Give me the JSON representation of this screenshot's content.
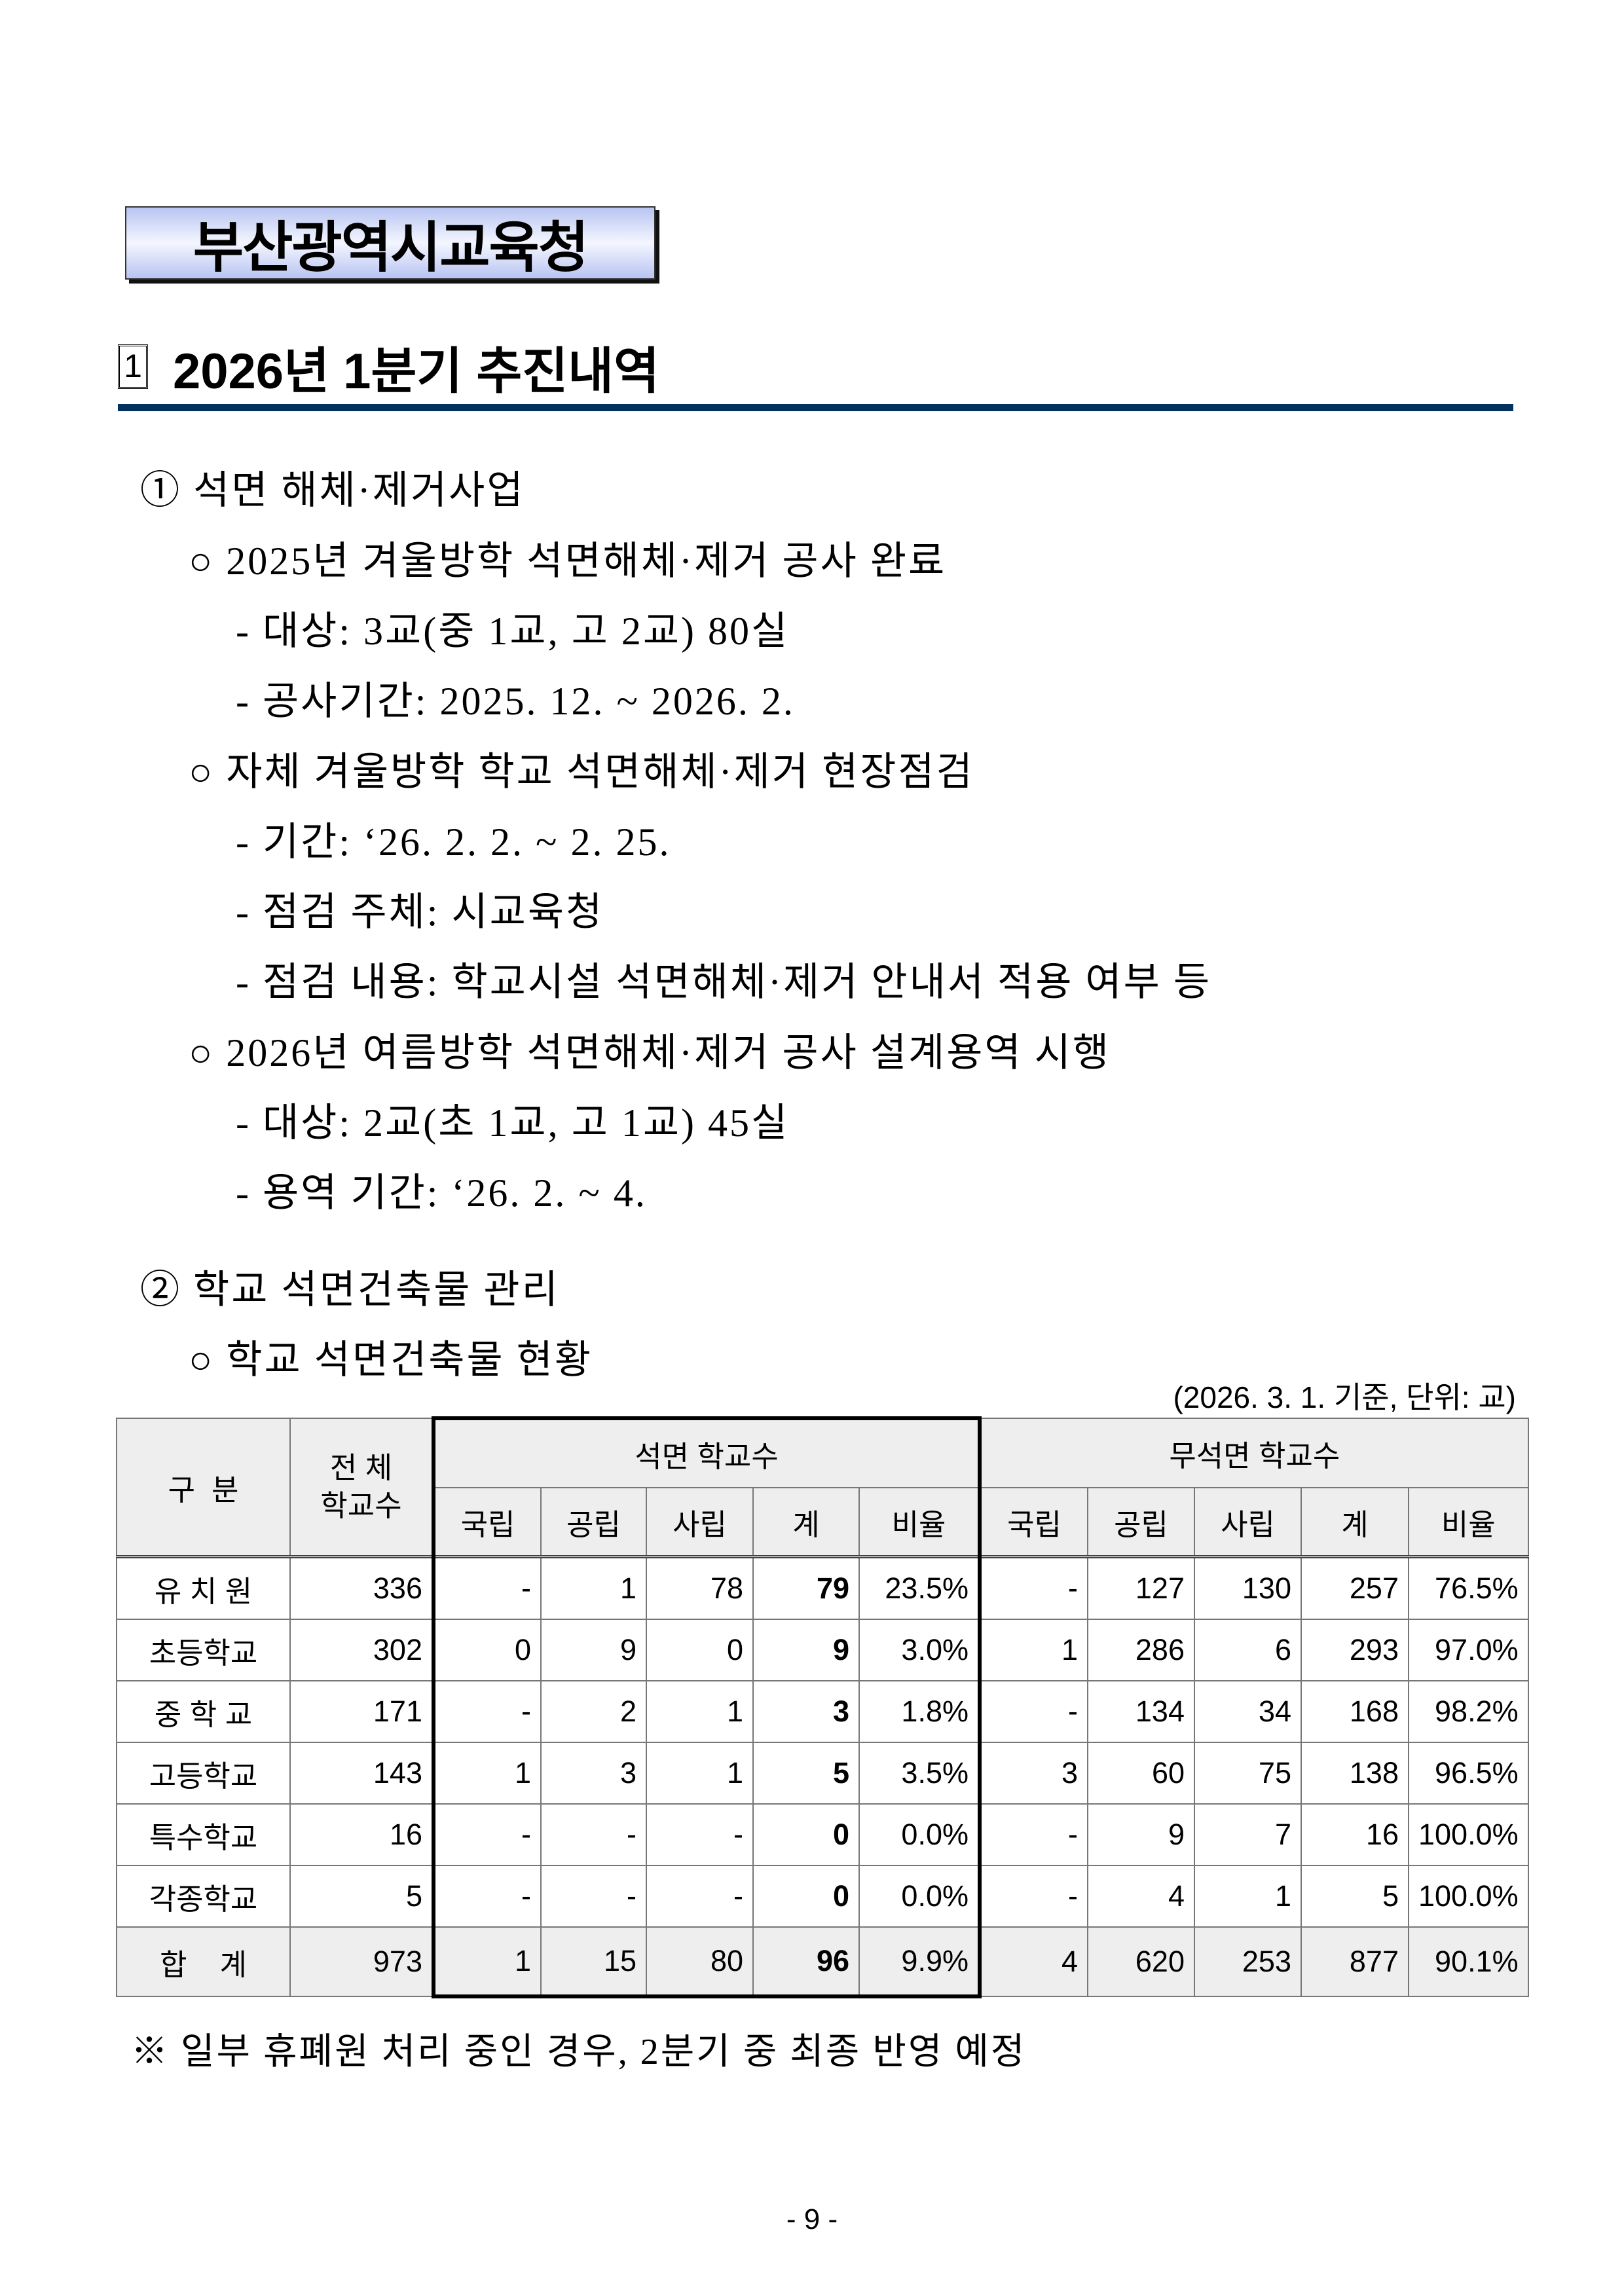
{
  "org_title": "부산광역시교육청",
  "heading": {
    "number": "1",
    "text": "2026년 1분기 추진내역"
  },
  "lines": [
    "① 석면 해체·제거사업",
    "○ 2025년 겨울방학 석면해체·제거 공사 완료",
    "- 대상: 3교(중 1교, 고 2교) 80실",
    "- 공사기간: 2025. 12. ~ 2026. 2.",
    "○ 자체 겨울방학 학교 석면해체·제거 현장점검",
    "- 기간: ‘26. 2. 2. ~ 2. 25.",
    "- 점검 주체: 시교육청",
    "- 점검 내용: 학교시설 석면해체·제거 안내서 적용 여부 등",
    "○ 2026년 여름방학 석면해체·제거 공사 설계용역 시행",
    "- 대상: 2교(초 1교, 고 1교) 45실",
    "- 용역 기간: ‘26. 2. ~ 4.",
    "② 학교 석면건축물 관리",
    "○ 학교 석면건축물 현황"
  ],
  "table": {
    "note": "(2026. 3. 1. 기준, 단위: 교)",
    "h_category": "구  분",
    "h_total": "전 체\n학교수",
    "h_asbestos": "석면 학교수",
    "h_non_asbestos": "무석면 학교수",
    "sub": [
      "국립",
      "공립",
      "사립",
      "계",
      "비율",
      "국립",
      "공립",
      "사립",
      "계",
      "비율"
    ],
    "rows": [
      [
        "유 치 원",
        "336",
        "-",
        "1",
        "78",
        "79",
        "23.5%",
        "-",
        "127",
        "130",
        "257",
        "76.5%"
      ],
      [
        "초등학교",
        "302",
        "0",
        "9",
        "0",
        "9",
        "3.0%",
        "1",
        "286",
        "6",
        "293",
        "97.0%"
      ],
      [
        "중 학 교",
        "171",
        "-",
        "2",
        "1",
        "3",
        "1.8%",
        "-",
        "134",
        "34",
        "168",
        "98.2%"
      ],
      [
        "고등학교",
        "143",
        "1",
        "3",
        "1",
        "5",
        "3.5%",
        "3",
        "60",
        "75",
        "138",
        "96.5%"
      ],
      [
        "특수학교",
        "16",
        "-",
        "-",
        "-",
        "0",
        "0.0%",
        "-",
        "9",
        "7",
        "16",
        "100.0%"
      ],
      [
        "각종학교",
        "5",
        "-",
        "-",
        "-",
        "0",
        "0.0%",
        "-",
        "4",
        "1",
        "5",
        "100.0%"
      ]
    ],
    "total": [
      "합    계",
      "973",
      "1",
      "15",
      "80",
      "96",
      "9.9%",
      "4",
      "620",
      "253",
      "877",
      "90.1%"
    ]
  },
  "footnote": "※ 일부 휴폐원 처리 중인 경우, 2분기 중 최종 반영 예정",
  "page_number": "- 9 -"
}
